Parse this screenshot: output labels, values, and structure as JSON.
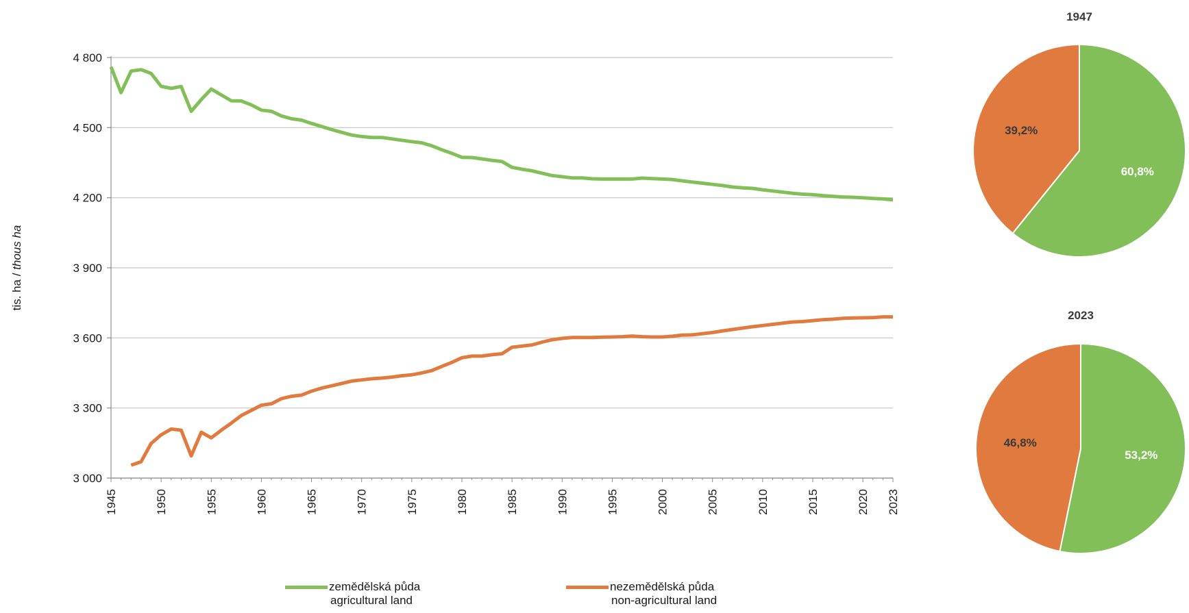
{
  "colors": {
    "agricultural": "#82bf58",
    "non_agricultural": "#e07a3f",
    "grid": "#c4c4c4",
    "axis": "#8c8c8c"
  },
  "chart_data": [
    {
      "type": "line",
      "xlabel": "",
      "ylabel": [
        "tis. ha",
        "thous ha"
      ],
      "ylim": [
        3000,
        4800
      ],
      "yticks": [
        3000,
        3300,
        3600,
        3900,
        4200,
        4500,
        4800
      ],
      "ytick_labels": [
        "3 000",
        "3 300",
        "3 600",
        "3 900",
        "4 200",
        "4 500",
        "4 800"
      ],
      "xlim": [
        1945,
        2023
      ],
      "xticks": [
        1945,
        1950,
        1955,
        1960,
        1965,
        1970,
        1975,
        1980,
        1985,
        1990,
        1995,
        2000,
        2005,
        2010,
        2015,
        2020,
        2023
      ],
      "grid": true,
      "legend": "bottom",
      "series": [
        {
          "name": "zemědělská půda",
          "name_en": "agricultural land",
          "key": "agricultural",
          "x": [
            1945,
            1946,
            1947,
            1948,
            1949,
            1950,
            1951,
            1952,
            1953,
            1954,
            1955,
            1956,
            1957,
            1958,
            1959,
            1960,
            1961,
            1962,
            1963,
            1964,
            1965,
            1966,
            1967,
            1968,
            1969,
            1970,
            1971,
            1972,
            1973,
            1974,
            1975,
            1976,
            1977,
            1978,
            1979,
            1980,
            1981,
            1982,
            1983,
            1984,
            1985,
            1986,
            1987,
            1988,
            1989,
            1990,
            1991,
            1992,
            1993,
            1994,
            1995,
            1996,
            1997,
            1998,
            1999,
            2000,
            2001,
            2002,
            2003,
            2004,
            2005,
            2006,
            2007,
            2008,
            2009,
            2010,
            2011,
            2012,
            2013,
            2014,
            2015,
            2016,
            2017,
            2018,
            2019,
            2020,
            2021,
            2022,
            2023
          ],
          "values": [
            4760,
            4650,
            4742,
            4748,
            4732,
            4677,
            4668,
            4676,
            4570,
            4620,
            4665,
            4640,
            4615,
            4614,
            4597,
            4575,
            4570,
            4550,
            4538,
            4532,
            4518,
            4505,
            4492,
            4480,
            4468,
            4462,
            4458,
            4458,
            4452,
            4446,
            4440,
            4435,
            4422,
            4405,
            4390,
            4373,
            4372,
            4366,
            4360,
            4355,
            4330,
            4322,
            4315,
            4305,
            4295,
            4290,
            4285,
            4285,
            4281,
            4280,
            4280,
            4280,
            4280,
            4284,
            4282,
            4280,
            4278,
            4272,
            4267,
            4262,
            4257,
            4252,
            4246,
            4242,
            4240,
            4234,
            4229,
            4224,
            4219,
            4215,
            4213,
            4209,
            4206,
            4203,
            4202,
            4200,
            4197,
            4195,
            4191
          ]
        },
        {
          "name": "nezemědělská půda",
          "name_en": "non-agricultural land",
          "key": "non_agricultural",
          "x": [
            1947,
            1948,
            1949,
            1950,
            1951,
            1952,
            1953,
            1954,
            1955,
            1956,
            1957,
            1958,
            1959,
            1960,
            1961,
            1962,
            1963,
            1964,
            1965,
            1966,
            1967,
            1968,
            1969,
            1970,
            1971,
            1972,
            1973,
            1974,
            1975,
            1976,
            1977,
            1978,
            1979,
            1980,
            1981,
            1982,
            1983,
            1984,
            1985,
            1986,
            1987,
            1988,
            1989,
            1990,
            1991,
            1992,
            1993,
            1994,
            1995,
            1996,
            1997,
            1998,
            1999,
            2000,
            2001,
            2002,
            2003,
            2004,
            2005,
            2006,
            2007,
            2008,
            2009,
            2010,
            2011,
            2012,
            2013,
            2014,
            2015,
            2016,
            2017,
            2018,
            2019,
            2020,
            2021,
            2022,
            2023
          ],
          "values": [
            3055,
            3070,
            3148,
            3185,
            3210,
            3205,
            3095,
            3196,
            3172,
            3205,
            3235,
            3268,
            3290,
            3312,
            3318,
            3340,
            3350,
            3355,
            3372,
            3385,
            3395,
            3405,
            3415,
            3420,
            3425,
            3428,
            3432,
            3438,
            3442,
            3450,
            3460,
            3478,
            3495,
            3515,
            3522,
            3522,
            3528,
            3532,
            3560,
            3565,
            3570,
            3582,
            3592,
            3598,
            3602,
            3602,
            3602,
            3603,
            3604,
            3605,
            3608,
            3605,
            3604,
            3604,
            3607,
            3612,
            3613,
            3618,
            3623,
            3630,
            3636,
            3642,
            3648,
            3653,
            3658,
            3663,
            3668,
            3670,
            3674,
            3678,
            3680,
            3684,
            3685,
            3686,
            3687,
            3690,
            3690
          ]
        }
      ]
    },
    {
      "type": "pie",
      "title": "1947",
      "slices": [
        {
          "key": "agricultural",
          "value": 60.8,
          "label": "60,8%"
        },
        {
          "key": "non_agricultural",
          "value": 39.2,
          "label": "39,2%"
        }
      ]
    },
    {
      "type": "pie",
      "title": "2023",
      "slices": [
        {
          "key": "agricultural",
          "value": 53.2,
          "label": "53,2%"
        },
        {
          "key": "non_agricultural",
          "value": 46.8,
          "label": "46,8%"
        }
      ]
    }
  ]
}
